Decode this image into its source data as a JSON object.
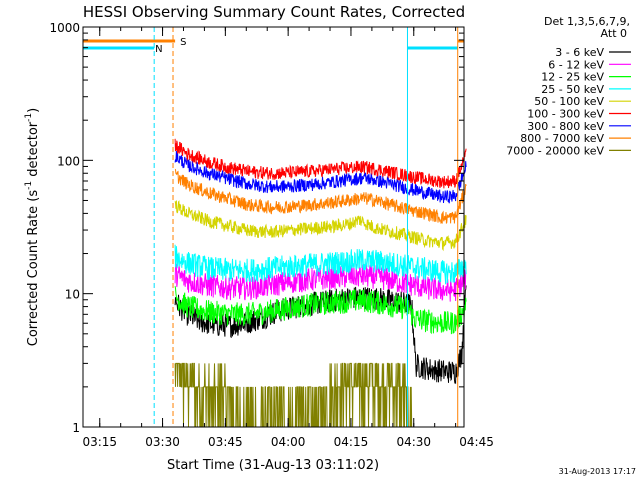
{
  "chart_data": {
    "type": "line",
    "title": "HESSI Observing Summary Count Rates, Corrected",
    "xlabel": "Start Time (31-Aug-13 03:11:02)",
    "ylabel_main": "Corrected Count Rate (s",
    "ylabel_sup1": "-1",
    "ylabel_mid": " detector",
    "ylabel_sup2": "-1",
    "ylabel_end": ")",
    "yscale": "log",
    "xlim_min": [
      0,
      91
    ],
    "ylim": [
      1,
      1000
    ],
    "xticks": [
      {
        "min": 4,
        "label": "03:15"
      },
      {
        "min": 19,
        "label": "03:30"
      },
      {
        "min": 34,
        "label": "03:45"
      },
      {
        "min": 49,
        "label": "04:00"
      },
      {
        "min": 64,
        "label": "04:15"
      },
      {
        "min": 79,
        "label": "04:30"
      },
      {
        "min": 94,
        "label": "04:45"
      }
    ],
    "yticks": [
      {
        "v": 1,
        "label": "1"
      },
      {
        "v": 10,
        "label": "10"
      },
      {
        "v": 100,
        "label": "100"
      },
      {
        "v": 1000,
        "label": "1000"
      }
    ],
    "legend_header": [
      "Det 1,3,5,6,7,9,",
      "Att 0"
    ],
    "legend_position": "right",
    "series": [
      {
        "name": "3 - 6 keV",
        "color": "#000000",
        "x": [
          22,
          23,
          25,
          28,
          32,
          36,
          40,
          44,
          46,
          48,
          52,
          56,
          60,
          63,
          66,
          69,
          72,
          75,
          77,
          78.5,
          79.5,
          83,
          87,
          89,
          90.5,
          91.5
        ],
        "y": [
          9,
          8,
          7,
          6.2,
          5.8,
          5.8,
          6.2,
          6.8,
          7.3,
          7.6,
          8.1,
          8.5,
          8.9,
          9.2,
          9.4,
          9.3,
          9,
          8.7,
          8.4,
          8.2,
          2.9,
          2.7,
          2.6,
          2.6,
          3.6,
          14
        ]
      },
      {
        "name": "6 - 12 keV",
        "color": "#ff00ff",
        "x": [
          22,
          25,
          30,
          35,
          40,
          45,
          50,
          55,
          60,
          64,
          67,
          70,
          74,
          78,
          82,
          86,
          89,
          91.5
        ],
        "y": [
          14,
          12.5,
          11.5,
          11,
          11,
          11.6,
          12.3,
          12.8,
          13.2,
          13.5,
          13.6,
          13.3,
          12.6,
          11.8,
          11,
          10.6,
          10.7,
          13
        ]
      },
      {
        "name": "12 - 25 keV",
        "color": "#00ff00",
        "x": [
          22,
          25,
          30,
          35,
          40,
          45,
          50,
          55,
          60,
          64,
          67,
          70,
          74,
          78,
          79,
          83,
          87,
          89,
          91.5
        ],
        "y": [
          9.5,
          8,
          7.3,
          7,
          7,
          7.4,
          7.9,
          8.3,
          8.6,
          8.8,
          8.9,
          8.6,
          8.1,
          7.7,
          6.5,
          6.2,
          6,
          6.1,
          8
        ]
      },
      {
        "name": "25 - 50 keV",
        "color": "#00ffff",
        "x": [
          22,
          25,
          30,
          35,
          40,
          45,
          50,
          55,
          60,
          64,
          67,
          70,
          74,
          78,
          82,
          86,
          89,
          91.5
        ],
        "y": [
          19,
          17,
          15.5,
          15,
          15,
          15.5,
          16,
          16.5,
          17,
          17.5,
          17.8,
          17.5,
          16.8,
          16,
          15.2,
          14.5,
          14.4,
          17
        ]
      },
      {
        "name": "50 - 100 keV",
        "color": "#d4d400",
        "x": [
          22,
          25,
          30,
          35,
          40,
          45,
          50,
          55,
          60,
          64,
          66,
          68,
          70,
          74,
          78,
          82,
          86,
          89,
          91.5
        ],
        "y": [
          46,
          40,
          35,
          32,
          29.5,
          29,
          30,
          31,
          32,
          33.5,
          36,
          33,
          31,
          29,
          27,
          25,
          24,
          24.5,
          36
        ]
      },
      {
        "name": "100 - 300 keV",
        "color": "#ff0000",
        "x": [
          22,
          25,
          30,
          35,
          40,
          45,
          50,
          55,
          60,
          64,
          67,
          70,
          74,
          78,
          82,
          86,
          89,
          91.5
        ],
        "y": [
          130,
          112,
          97,
          88,
          82,
          80,
          81,
          83,
          86,
          88,
          89,
          86,
          81,
          76,
          72,
          69,
          70,
          110
        ]
      },
      {
        "name": "300 - 800 keV",
        "color": "#0000ff",
        "x": [
          22,
          25,
          30,
          35,
          40,
          45,
          50,
          55,
          60,
          64,
          67,
          70,
          74,
          78,
          82,
          86,
          89,
          91.5
        ],
        "y": [
          108,
          92,
          80,
          72,
          66,
          63,
          64,
          66,
          69,
          72,
          74,
          71,
          66,
          61,
          57,
          53,
          54,
          90
        ]
      },
      {
        "name": "800 - 7000 keV",
        "color": "#ff8000",
        "x": [
          22,
          25,
          30,
          35,
          40,
          45,
          50,
          55,
          60,
          64,
          67,
          70,
          74,
          78,
          82,
          86,
          89,
          91.5
        ],
        "y": [
          78,
          66,
          57,
          51,
          46,
          44.5,
          45,
          46.5,
          48.5,
          50.5,
          52,
          50,
          46,
          42.5,
          40,
          37,
          37.5,
          62
        ]
      },
      {
        "name": "7000 - 20000 keV",
        "color": "#808000",
        "x": [
          22,
          23.5,
          25,
          27,
          29,
          31,
          33,
          35,
          38,
          42,
          46,
          50,
          52,
          55,
          58,
          61,
          63,
          65,
          67,
          69,
          71,
          73,
          75,
          77,
          78.5
        ],
        "y": [
          2.5,
          2.3,
          2.1,
          1.7,
          1.5,
          1.3,
          1.6,
          1.2,
          1,
          1,
          1,
          1,
          1.2,
          1,
          1.4,
          1.8,
          2,
          1.9,
          2,
          1.8,
          1.7,
          2,
          1.6,
          1.5,
          1
        ]
      }
    ],
    "attenuator_label": "S",
    "attenuator_color": "#ff8000",
    "attenuator_bars": [
      [
        0,
        22
      ],
      [
        89.5,
        91
      ]
    ],
    "night_label": "N",
    "night_color": "#00e0ff",
    "night_bars": [
      [
        0,
        17
      ],
      [
        77.5,
        89.5
      ]
    ],
    "vlines": [
      {
        "x": 17,
        "color": "#00e0ff",
        "style": "dashed"
      },
      {
        "x": 21.5,
        "color": "#ff8000",
        "style": "dashed"
      },
      {
        "x": 77.5,
        "color": "#00e0ff",
        "style": "solid"
      },
      {
        "x": 89.5,
        "color": "#ff8000",
        "style": "solid"
      },
      {
        "x": 91,
        "color": "#00e0ff",
        "style": "dashed"
      }
    ],
    "timestamp": "31-Aug-2013 17:17"
  }
}
